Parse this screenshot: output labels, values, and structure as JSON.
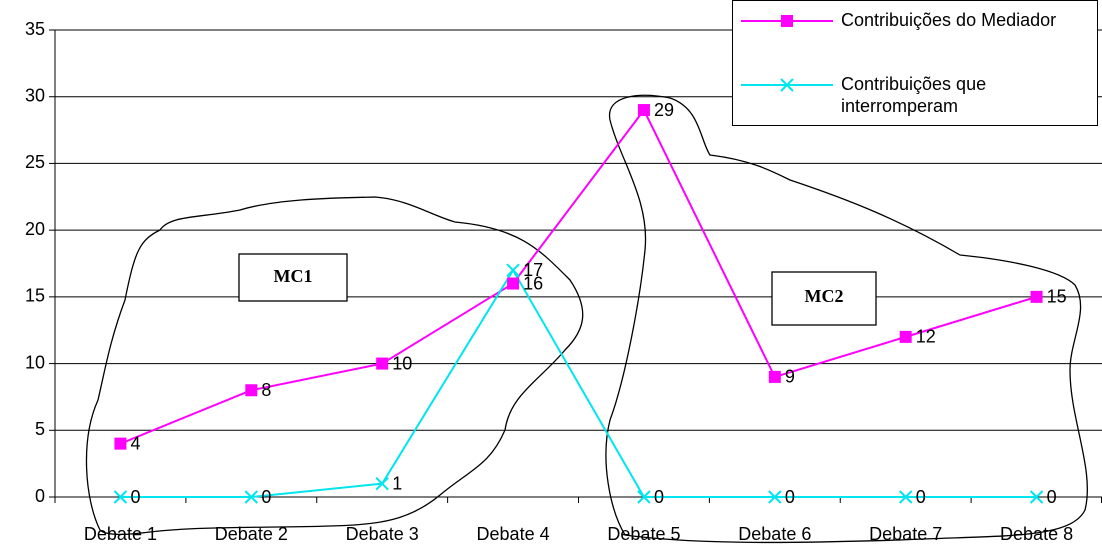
{
  "chart_data": {
    "type": "line",
    "categories": [
      "Debate 1",
      "Debate 2",
      "Debate 3",
      "Debate 4",
      "Debate 5",
      "Debate 6",
      "Debate 7",
      "Debate 8"
    ],
    "series": [
      {
        "name": "Contribuições do Mediador",
        "color": "#ff00ff",
        "marker": "square",
        "values": [
          4,
          8,
          10,
          16,
          29,
          9,
          12,
          15
        ]
      },
      {
        "name": "Contribuições que interromperam",
        "color": "#00e5ee",
        "marker": "x",
        "values": [
          0,
          0,
          1,
          17,
          0,
          0,
          0,
          0
        ]
      }
    ],
    "ylim": [
      0,
      35
    ],
    "yticks": [
      0,
      5,
      10,
      15,
      20,
      25,
      30,
      35
    ],
    "grid": true,
    "legend": "top-right",
    "annotations": [
      "MC1",
      "MC2"
    ]
  }
}
